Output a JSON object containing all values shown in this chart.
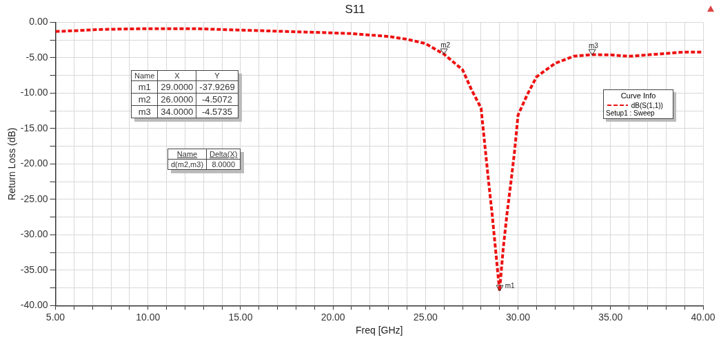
{
  "chart_data": {
    "type": "line",
    "title": "S11",
    "xlabel": "Freq [GHz]",
    "ylabel": "Return Loss (dB)",
    "legend_title": "Curve Info",
    "legend": "right",
    "x": [
      5,
      6,
      7.5,
      10,
      12.5,
      15,
      17.5,
      20,
      21,
      22,
      23,
      24,
      25,
      26,
      27,
      27.5,
      28,
      28.2,
      28.4,
      28.6,
      28.8,
      29,
      29.2,
      29.4,
      29.6,
      29.8,
      30,
      30.5,
      31,
      32,
      33,
      34,
      35,
      36,
      37,
      38,
      39,
      40
    ],
    "series": [
      {
        "name": "dB(S(1,1))",
        "color": "#ee1111",
        "line_style": "dashed",
        "marker": "none",
        "values": [
          -1.3,
          -1.2,
          -1.0,
          -0.9,
          -0.9,
          -1.1,
          -1.3,
          -1.5,
          -1.6,
          -1.8,
          -2.0,
          -2.4,
          -3.0,
          -4.5072,
          -6.7,
          -9.6,
          -12.1,
          -17.2,
          -22.3,
          -27.1,
          -32.5,
          -37.9269,
          -31.9,
          -27.1,
          -22.9,
          -18.5,
          -13.1,
          -10.2,
          -7.7,
          -5.8,
          -4.8,
          -4.5735,
          -4.6,
          -4.8,
          -4.6,
          -4.4,
          -4.2,
          -4.2
        ]
      }
    ],
    "xlim": [
      5,
      40
    ],
    "ylim": [
      -40,
      0
    ],
    "xticks": [
      {
        "value": 5,
        "label": "5.00"
      },
      {
        "value": 6,
        "label": null
      },
      {
        "value": 7,
        "label": null
      },
      {
        "value": 8,
        "label": null
      },
      {
        "value": 9,
        "label": null
      },
      {
        "value": 10,
        "label": "10.00"
      },
      {
        "value": 11,
        "label": null
      },
      {
        "value": 12,
        "label": null
      },
      {
        "value": 13,
        "label": null
      },
      {
        "value": 14,
        "label": null
      },
      {
        "value": 15,
        "label": "15.00"
      },
      {
        "value": 16,
        "label": null
      },
      {
        "value": 17,
        "label": null
      },
      {
        "value": 18,
        "label": null
      },
      {
        "value": 19,
        "label": null
      },
      {
        "value": 20,
        "label": "20.00"
      },
      {
        "value": 21,
        "label": null
      },
      {
        "value": 22,
        "label": null
      },
      {
        "value": 23,
        "label": null
      },
      {
        "value": 24,
        "label": null
      },
      {
        "value": 25,
        "label": "25.00"
      },
      {
        "value": 26,
        "label": null
      },
      {
        "value": 27,
        "label": null
      },
      {
        "value": 28,
        "label": null
      },
      {
        "value": 29,
        "label": null
      },
      {
        "value": 30,
        "label": "30.00"
      },
      {
        "value": 31,
        "label": null
      },
      {
        "value": 32,
        "label": null
      },
      {
        "value": 33,
        "label": null
      },
      {
        "value": 34,
        "label": null
      },
      {
        "value": 35,
        "label": "35.00"
      },
      {
        "value": 36,
        "label": null
      },
      {
        "value": 37,
        "label": null
      },
      {
        "value": 38,
        "label": null
      },
      {
        "value": 39,
        "label": null
      },
      {
        "value": 40,
        "label": "40.00"
      }
    ],
    "yticks": [
      {
        "value": -40,
        "label": "-40.00"
      },
      {
        "value": -37.5,
        "label": null
      },
      {
        "value": -35,
        "label": "-35.00"
      },
      {
        "value": -32.5,
        "label": null
      },
      {
        "value": -30,
        "label": "-30.00"
      },
      {
        "value": -27.5,
        "label": null
      },
      {
        "value": -25,
        "label": "-25.00"
      },
      {
        "value": -22.5,
        "label": null
      },
      {
        "value": -20,
        "label": "-20.00"
      },
      {
        "value": -17.5,
        "label": null
      },
      {
        "value": -15,
        "label": "-15.00"
      },
      {
        "value": -12.5,
        "label": null
      },
      {
        "value": -10,
        "label": "-10.00"
      },
      {
        "value": -7.5,
        "label": null
      },
      {
        "value": -5,
        "label": "-5.00"
      },
      {
        "value": -2.5,
        "label": null
      },
      {
        "value": 0,
        "label": "0.00"
      }
    ],
    "grid": true,
    "annotations": [
      "Name",
      "X",
      "Y",
      "m1",
      "29.0000",
      "-37.9269",
      "m2",
      "26.0000",
      "-4.5072",
      "m3",
      "34.0000",
      "-4.5735",
      "Name",
      "Delta(X)",
      "d(m2,m3)",
      "8.0000",
      "Setup1 : Sweep",
      {
        "text": "m1",
        "x": 29,
        "y": -37.9269
      },
      {
        "text": "m2",
        "x": 26,
        "y": -4.5072
      },
      {
        "text": "m3",
        "x": 34,
        "y": -4.5735
      }
    ]
  }
}
